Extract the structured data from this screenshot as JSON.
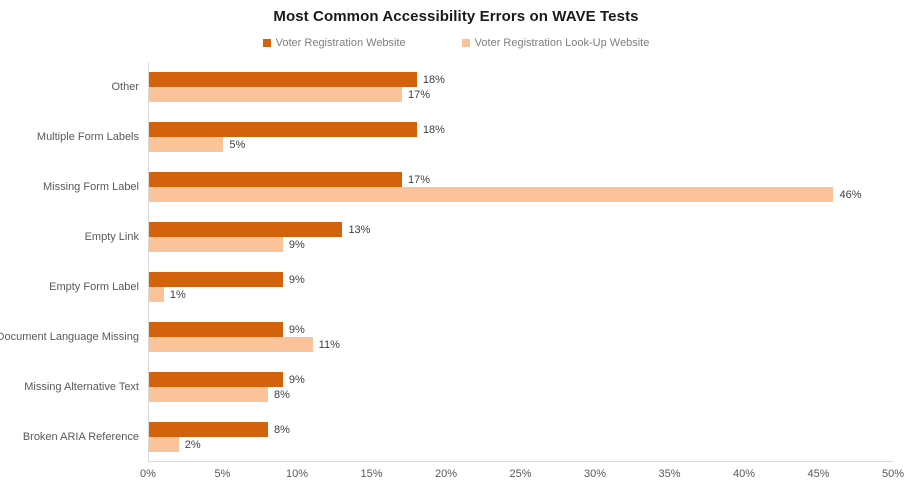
{
  "chart_data": {
    "type": "bar",
    "orientation": "horizontal",
    "title": "Most Common Accessibility Errors on WAVE Tests",
    "categories": [
      "Other",
      "Multiple Form Labels",
      "Missing Form Label",
      "Empty Link",
      "Empty Form Label",
      "Document Language Missing",
      "Missing Alternative Text",
      "Broken ARIA Reference"
    ],
    "series": [
      {
        "name": "Voter Registration Website",
        "color": "#D2620C",
        "values": [
          18,
          18,
          17,
          13,
          9,
          9,
          9,
          8
        ],
        "labels": [
          "18%",
          "18%",
          "17%",
          "13%",
          "9%",
          "9%",
          "9%",
          "8%"
        ]
      },
      {
        "name": "Voter Registration Look-Up Website",
        "color": "#FAC399",
        "values": [
          17,
          5,
          46,
          9,
          1,
          11,
          8,
          2
        ],
        "labels": [
          "17%",
          "5%",
          "46%",
          "9%",
          "1%",
          "11%",
          "8%",
          "2%"
        ]
      }
    ],
    "xlabel": "",
    "ylabel": "",
    "xlim": [
      0,
      50
    ],
    "x_ticks": [
      "0%",
      "5%",
      "10%",
      "15%",
      "20%",
      "25%",
      "30%",
      "35%",
      "40%",
      "45%",
      "50%"
    ],
    "grid": false,
    "legend_position": "top",
    "axis_color": "#D9D9D9",
    "category_label_color": "#595959",
    "value_label_color": "#404040",
    "legend_text_color": "#7F7F7F"
  }
}
